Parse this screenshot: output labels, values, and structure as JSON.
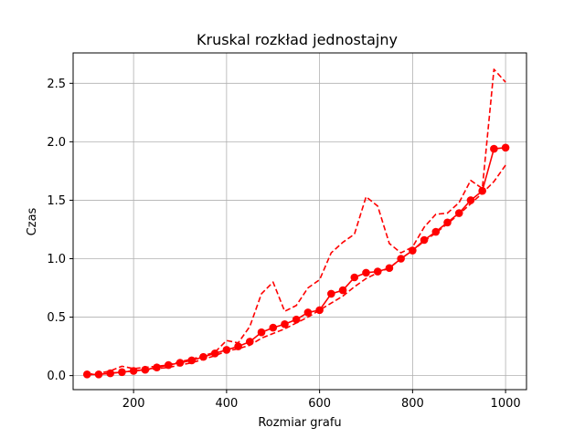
{
  "chart_data": {
    "type": "line",
    "title": "Kruskal rozkład jednostajny",
    "xlabel": "Rozmiar grafu",
    "ylabel": "Czas",
    "xlim": [
      70,
      1045
    ],
    "ylim": [
      -0.12,
      2.76
    ],
    "xticks": [
      200,
      400,
      600,
      800,
      1000
    ],
    "yticks": [
      0.0,
      0.5,
      1.0,
      1.5,
      2.0,
      2.5
    ],
    "xtick_labels": [
      "200",
      "400",
      "600",
      "800",
      "1000"
    ],
    "ytick_labels": [
      "0.0",
      "0.5",
      "1.0",
      "1.5",
      "2.0",
      "2.5"
    ],
    "grid": true,
    "color": "#ff0000",
    "x": [
      100,
      125,
      150,
      175,
      200,
      225,
      250,
      275,
      300,
      325,
      350,
      375,
      400,
      425,
      450,
      475,
      500,
      525,
      550,
      575,
      600,
      625,
      650,
      675,
      700,
      725,
      750,
      775,
      800,
      825,
      850,
      875,
      900,
      925,
      950,
      975,
      1000
    ],
    "series": [
      {
        "style": "solid-markers",
        "values": [
          0.01,
          0.01,
          0.02,
          0.03,
          0.04,
          0.05,
          0.07,
          0.09,
          0.11,
          0.13,
          0.16,
          0.19,
          0.22,
          0.25,
          0.29,
          0.37,
          0.41,
          0.44,
          0.48,
          0.54,
          0.56,
          0.7,
          0.73,
          0.84,
          0.88,
          0.89,
          0.92,
          1.0,
          1.07,
          1.16,
          1.23,
          1.31,
          1.39,
          1.5,
          1.58,
          1.94,
          1.95
        ]
      },
      {
        "style": "dashed-upper",
        "values": [
          0.01,
          0.02,
          0.04,
          0.08,
          0.06,
          0.07,
          0.08,
          0.09,
          0.12,
          0.14,
          0.17,
          0.2,
          0.3,
          0.28,
          0.42,
          0.7,
          0.8,
          0.55,
          0.6,
          0.75,
          0.82,
          1.05,
          1.14,
          1.21,
          1.53,
          1.45,
          1.13,
          1.05,
          1.1,
          1.27,
          1.38,
          1.39,
          1.48,
          1.67,
          1.6,
          2.62,
          2.51
        ]
      },
      {
        "style": "dashed-lower",
        "values": [
          0.01,
          0.01,
          0.02,
          0.03,
          0.04,
          0.05,
          0.06,
          0.07,
          0.09,
          0.11,
          0.14,
          0.17,
          0.21,
          0.23,
          0.26,
          0.32,
          0.36,
          0.4,
          0.45,
          0.5,
          0.56,
          0.62,
          0.68,
          0.76,
          0.83,
          0.88,
          0.92,
          1.0,
          1.07,
          1.15,
          1.22,
          1.3,
          1.38,
          1.47,
          1.56,
          1.66,
          1.8
        ]
      }
    ]
  }
}
